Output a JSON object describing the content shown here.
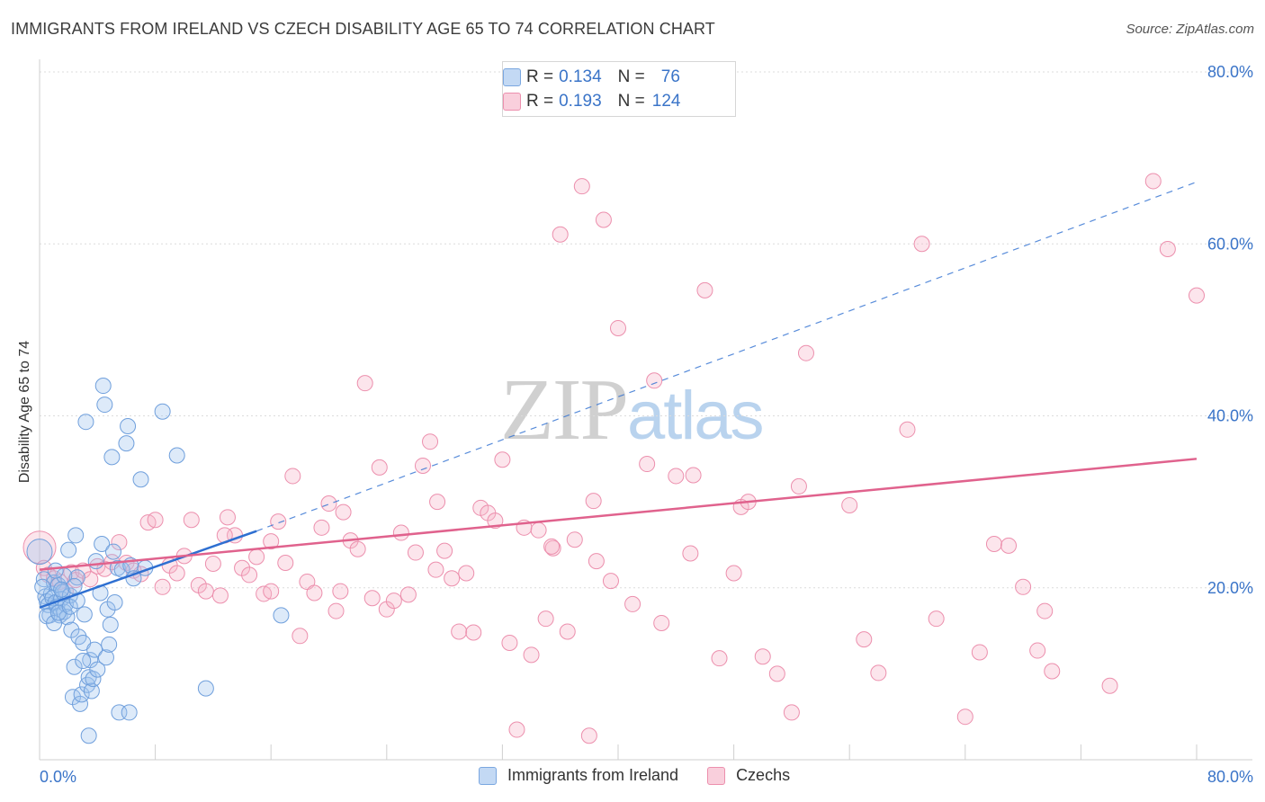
{
  "header": {
    "title": "IMMIGRANTS FROM IRELAND VS CZECH DISABILITY AGE 65 TO 74 CORRELATION CHART",
    "source": "Source: ZipAtlas.com"
  },
  "watermark": {
    "zip": "ZIP",
    "atlas": "atlas"
  },
  "legend_top": {
    "rows": [
      {
        "r_label": "R =",
        "r_value": "0.134",
        "n_label": "N =",
        "n_value": "76"
      },
      {
        "r_label": "R =",
        "r_value": "0.193",
        "n_label": "N =",
        "n_value": "124"
      }
    ]
  },
  "chart_data": {
    "type": "scatter",
    "title": "IMMIGRANTS FROM IRELAND VS CZECH DISABILITY AGE 65 TO 74 CORRELATION CHART",
    "xlabel": "",
    "ylabel": "Disability Age 65 to 74",
    "xlim": [
      0,
      80
    ],
    "ylim": [
      0,
      80
    ],
    "x_tick_labels": [
      "0.0%",
      "80.0%"
    ],
    "y_tick_labels": [
      "20.0%",
      "40.0%",
      "60.0%",
      "80.0%"
    ],
    "y_ticks": [
      20,
      40,
      60,
      80
    ],
    "grid": true,
    "legend_position": "bottom",
    "colors": {
      "ireland": "#9fc3ee",
      "ireland_line": "#2e6fd1",
      "czech": "#f5b4c8",
      "czech_line": "#e0628d",
      "tick_label": "#3a74c8"
    },
    "series": [
      {
        "name": "Immigrants from Ireland",
        "color": "#9fc3ee",
        "trend": {
          "x": [
            0,
            15
          ],
          "y": [
            17.7,
            26.6
          ],
          "extended_x": [
            15,
            80
          ],
          "extended_y": [
            26.6,
            67.2
          ]
        },
        "points": [
          [
            0.0,
            24.2
          ],
          [
            0.3,
            21.0
          ],
          [
            0.4,
            19.0
          ],
          [
            0.5,
            18.4
          ],
          [
            0.6,
            18.0
          ],
          [
            0.7,
            16.8
          ],
          [
            0.8,
            19.3
          ],
          [
            0.9,
            18.8
          ],
          [
            1.0,
            20.6
          ],
          [
            1.1,
            18.3
          ],
          [
            1.2,
            17.8
          ],
          [
            1.3,
            20.3
          ],
          [
            1.4,
            16.8
          ],
          [
            1.5,
            18.7
          ],
          [
            1.6,
            19.5
          ],
          [
            1.7,
            17.2
          ],
          [
            1.8,
            18.1
          ],
          [
            1.9,
            16.6
          ],
          [
            2.0,
            24.4
          ],
          [
            2.1,
            19.1
          ],
          [
            2.2,
            15.1
          ],
          [
            2.3,
            7.3
          ],
          [
            2.4,
            10.8
          ],
          [
            2.5,
            26.1
          ],
          [
            2.6,
            21.2
          ],
          [
            2.7,
            14.3
          ],
          [
            2.8,
            6.5
          ],
          [
            2.9,
            7.6
          ],
          [
            3.0,
            13.6
          ],
          [
            3.1,
            16.9
          ],
          [
            3.2,
            39.3
          ],
          [
            3.3,
            8.7
          ],
          [
            3.4,
            9.6
          ],
          [
            3.5,
            11.6
          ],
          [
            3.6,
            8.0
          ],
          [
            3.7,
            9.4
          ],
          [
            3.8,
            12.8
          ],
          [
            3.9,
            23.1
          ],
          [
            4.0,
            10.5
          ],
          [
            4.2,
            19.4
          ],
          [
            4.3,
            25.1
          ],
          [
            4.4,
            43.5
          ],
          [
            4.5,
            41.3
          ],
          [
            4.6,
            11.9
          ],
          [
            4.7,
            17.5
          ],
          [
            4.8,
            13.4
          ],
          [
            4.9,
            15.7
          ],
          [
            5.0,
            35.2
          ],
          [
            5.1,
            24.2
          ],
          [
            5.2,
            18.3
          ],
          [
            5.4,
            22.3
          ],
          [
            5.5,
            5.5
          ],
          [
            5.7,
            22.1
          ],
          [
            6.0,
            36.8
          ],
          [
            6.1,
            38.8
          ],
          [
            6.2,
            5.5
          ],
          [
            6.3,
            22.6
          ],
          [
            6.5,
            21.1
          ],
          [
            7.0,
            32.6
          ],
          [
            7.3,
            22.3
          ],
          [
            8.5,
            40.5
          ],
          [
            9.5,
            35.4
          ],
          [
            0.2,
            20.1
          ],
          [
            0.5,
            16.7
          ],
          [
            1.0,
            15.9
          ],
          [
            1.3,
            17.1
          ],
          [
            1.7,
            21.4
          ],
          [
            2.1,
            17.8
          ],
          [
            2.6,
            18.5
          ],
          [
            3.0,
            11.5
          ],
          [
            3.4,
            2.8
          ],
          [
            11.5,
            8.3
          ],
          [
            16.7,
            16.8
          ],
          [
            2.4,
            20.2
          ],
          [
            1.1,
            22.0
          ],
          [
            1.5,
            19.8
          ]
        ]
      },
      {
        "name": "Czechs",
        "color": "#f5b4c8",
        "trend": {
          "x": [
            0,
            80
          ],
          "y": [
            22.1,
            35.0
          ]
        },
        "points": [
          [
            0.0,
            24.7
          ],
          [
            0.3,
            22.3
          ],
          [
            0.6,
            21.5
          ],
          [
            1.0,
            21.1
          ],
          [
            1.4,
            20.7
          ],
          [
            1.8,
            19.6
          ],
          [
            2.2,
            21.8
          ],
          [
            2.5,
            20.9
          ],
          [
            3.0,
            22.0
          ],
          [
            3.5,
            21.0
          ],
          [
            4.0,
            22.5
          ],
          [
            4.5,
            22.2
          ],
          [
            5.0,
            23.0
          ],
          [
            5.5,
            25.3
          ],
          [
            6.0,
            22.9
          ],
          [
            6.5,
            22.0
          ],
          [
            7.0,
            21.6
          ],
          [
            7.5,
            27.6
          ],
          [
            8.0,
            27.9
          ],
          [
            8.5,
            20.1
          ],
          [
            9.0,
            22.6
          ],
          [
            9.5,
            21.7
          ],
          [
            10.0,
            23.7
          ],
          [
            10.5,
            27.9
          ],
          [
            11.0,
            20.3
          ],
          [
            11.5,
            19.6
          ],
          [
            12.0,
            22.8
          ],
          [
            12.5,
            19.1
          ],
          [
            13.0,
            28.2
          ],
          [
            13.5,
            26.1
          ],
          [
            14.0,
            22.3
          ],
          [
            14.5,
            21.5
          ],
          [
            15.0,
            23.6
          ],
          [
            15.5,
            19.3
          ],
          [
            16.0,
            19.6
          ],
          [
            16.5,
            27.7
          ],
          [
            17.0,
            22.9
          ],
          [
            17.5,
            33.0
          ],
          [
            18.0,
            14.4
          ],
          [
            18.5,
            20.7
          ],
          [
            19.0,
            19.4
          ],
          [
            19.5,
            27.0
          ],
          [
            20.0,
            29.8
          ],
          [
            20.5,
            17.3
          ],
          [
            21.0,
            28.8
          ],
          [
            21.5,
            25.5
          ],
          [
            22.0,
            24.5
          ],
          [
            22.5,
            43.8
          ],
          [
            23.0,
            18.8
          ],
          [
            23.5,
            34.0
          ],
          [
            24.0,
            17.5
          ],
          [
            24.5,
            18.5
          ],
          [
            25.0,
            26.4
          ],
          [
            25.5,
            19.2
          ],
          [
            26.0,
            24.1
          ],
          [
            26.5,
            34.2
          ],
          [
            27.0,
            37.0
          ],
          [
            27.5,
            30.0
          ],
          [
            28.0,
            24.3
          ],
          [
            28.5,
            21.1
          ],
          [
            29.0,
            14.9
          ],
          [
            29.5,
            21.7
          ],
          [
            30.0,
            14.8
          ],
          [
            30.5,
            29.3
          ],
          [
            31.0,
            28.7
          ],
          [
            31.5,
            27.8
          ],
          [
            32.0,
            34.9
          ],
          [
            32.5,
            13.6
          ],
          [
            33.0,
            3.5
          ],
          [
            33.5,
            27.0
          ],
          [
            34.0,
            12.2
          ],
          [
            34.5,
            26.7
          ],
          [
            35.0,
            16.4
          ],
          [
            35.5,
            24.6
          ],
          [
            36.0,
            61.1
          ],
          [
            36.5,
            14.9
          ],
          [
            37.0,
            25.6
          ],
          [
            37.5,
            66.7
          ],
          [
            38.0,
            2.8
          ],
          [
            38.5,
            23.1
          ],
          [
            39.0,
            62.8
          ],
          [
            39.5,
            20.8
          ],
          [
            40.0,
            50.2
          ],
          [
            41.0,
            18.1
          ],
          [
            42.0,
            34.4
          ],
          [
            42.5,
            44.1
          ],
          [
            43.0,
            15.9
          ],
          [
            44.0,
            33.0
          ],
          [
            45.0,
            24.0
          ],
          [
            46.0,
            54.6
          ],
          [
            47.0,
            11.8
          ],
          [
            48.0,
            21.7
          ],
          [
            48.5,
            29.4
          ],
          [
            49.0,
            30.0
          ],
          [
            50.0,
            12.0
          ],
          [
            51.0,
            10.0
          ],
          [
            52.0,
            5.5
          ],
          [
            52.5,
            31.8
          ],
          [
            53.0,
            47.3
          ],
          [
            56.0,
            29.6
          ],
          [
            57.0,
            14.0
          ],
          [
            58.0,
            10.1
          ],
          [
            60.0,
            38.4
          ],
          [
            61.0,
            60.0
          ],
          [
            62.0,
            16.4
          ],
          [
            64.0,
            5.0
          ],
          [
            65.0,
            12.5
          ],
          [
            66.0,
            25.1
          ],
          [
            67.0,
            24.9
          ],
          [
            68.0,
            20.1
          ],
          [
            69.0,
            12.7
          ],
          [
            69.5,
            17.3
          ],
          [
            70.0,
            10.3
          ],
          [
            74.0,
            8.6
          ],
          [
            77.0,
            67.3
          ],
          [
            78.0,
            59.4
          ],
          [
            80.0,
            54.0
          ],
          [
            45.2,
            33.1
          ],
          [
            35.4,
            24.8
          ],
          [
            12.8,
            26.1
          ],
          [
            20.8,
            19.6
          ],
          [
            27.4,
            22.1
          ],
          [
            38.3,
            30.1
          ],
          [
            16.0,
            25.4
          ]
        ]
      }
    ]
  },
  "bottom_legend": {
    "items": [
      "Immigrants from Ireland",
      "Czechs"
    ]
  }
}
